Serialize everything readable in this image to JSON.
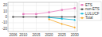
{
  "chart_data": {
    "type": "line",
    "x": [
      2006,
      2010,
      2015,
      2020,
      2025,
      2030
    ],
    "series": [
      {
        "name": "ETS",
        "color": "#e87dbf",
        "marker": "square",
        "values": [
          null,
          5,
          5,
          8,
          12,
          15
        ]
      },
      {
        "name": "non-ETS",
        "color": "#555555",
        "marker": "circle",
        "values": [
          0,
          0,
          0,
          0,
          0,
          0
        ]
      },
      {
        "name": "LULUCF",
        "color": "#00b4d8",
        "marker": "triangle",
        "values": [
          null,
          null,
          null,
          -1,
          -3,
          -5
        ]
      },
      {
        "name": "Total",
        "color": "#f5a623",
        "marker": "diamond",
        "values": [
          null,
          null,
          null,
          -4,
          -12,
          -18
        ]
      }
    ],
    "xlim": [
      2004,
      2031
    ],
    "ylim": [
      -25,
      25
    ],
    "xticks": [
      2006,
      2010,
      2015,
      2020,
      2025,
      2030
    ],
    "yticks": [
      -20,
      -10,
      0,
      10,
      20
    ],
    "grid": true,
    "legend": "right"
  }
}
